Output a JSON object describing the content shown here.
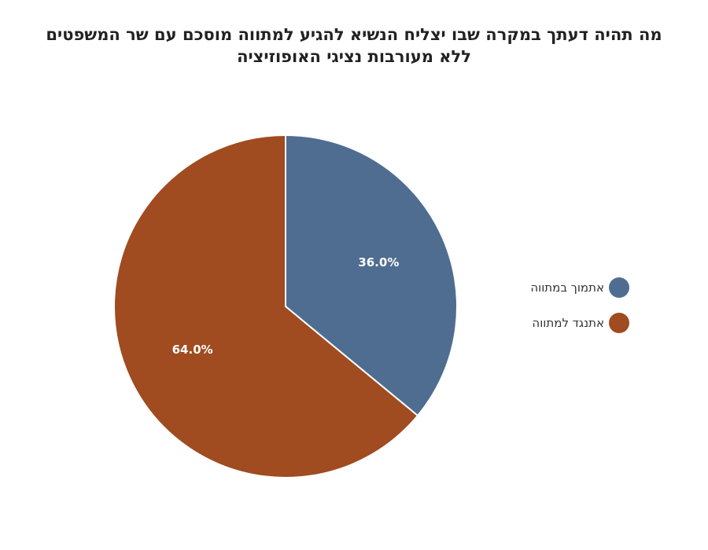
{
  "chart_data": {
    "type": "pie",
    "title": [
      "מה תהיה דעתך במקרה שבו יצליח הנשיא להגיע למתווה מוסכם עם שר המשפטים",
      "ללא מעורבות נציגי האופוזיציה"
    ],
    "slices": [
      {
        "label": "אתמוך במתווה",
        "value": 36.0,
        "data_label": "36.0%",
        "color": "#4f6d91"
      },
      {
        "label": "אתנגד למתווה",
        "value": 64.0,
        "data_label": "64.0%",
        "color": "#a04b20"
      }
    ],
    "legend_placement": "right"
  }
}
